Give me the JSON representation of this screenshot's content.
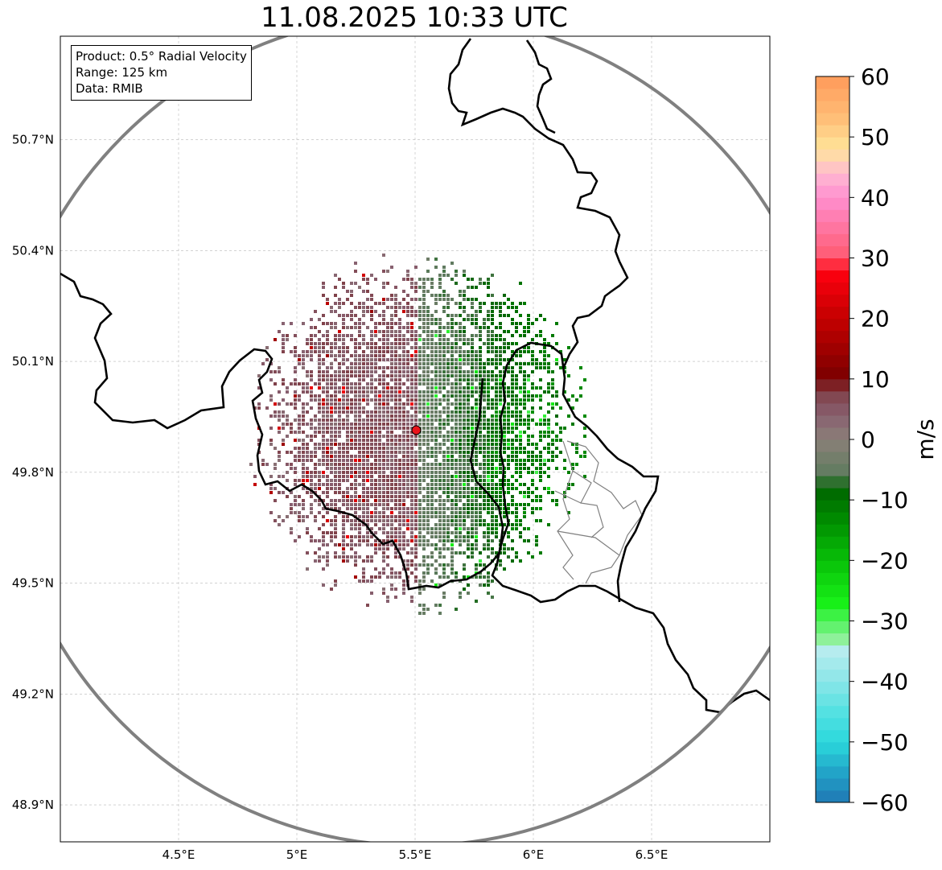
{
  "title": "11.08.2025 10:33 UTC",
  "info_box": {
    "product": "Product: 0.5° Radial Velocity",
    "range": "Range: 125 km",
    "data": "Data: RMIB"
  },
  "map": {
    "lon_range": [
      4.0,
      7.0
    ],
    "lat_range": [
      48.8,
      50.98
    ],
    "radar_site": {
      "lon": 5.505,
      "lat": 49.914
    },
    "range_circle_km": 125,
    "lon_ticks": [
      {
        "value": 4.5,
        "label": "4.5°E"
      },
      {
        "value": 5.0,
        "label": "5°E"
      },
      {
        "value": 5.5,
        "label": "5.5°E"
      },
      {
        "value": 6.0,
        "label": "6°E"
      },
      {
        "value": 6.5,
        "label": "6.5°E"
      }
    ],
    "lat_ticks": [
      {
        "value": 50.7,
        "label": "50.7°N"
      },
      {
        "value": 50.4,
        "label": "50.4°N"
      },
      {
        "value": 50.1,
        "label": "50.1°N"
      },
      {
        "value": 49.8,
        "label": "49.8°N"
      },
      {
        "value": 49.5,
        "label": "49.5°N"
      },
      {
        "value": 49.2,
        "label": "49.2°N"
      },
      {
        "value": 48.9,
        "label": "48.9°N"
      }
    ],
    "colors": {
      "border": "#000000",
      "subborder": "#808080",
      "range_circle": "#808080",
      "grid": "#b8b8b8",
      "site_marker": "#e8141b"
    }
  },
  "colorbar": {
    "label": "m/s",
    "min": -60,
    "max": 60,
    "ticks": [
      {
        "value": 60,
        "label": "60"
      },
      {
        "value": 50,
        "label": "50"
      },
      {
        "value": 40,
        "label": "40"
      },
      {
        "value": 30,
        "label": "30"
      },
      {
        "value": 20,
        "label": "20"
      },
      {
        "value": 10,
        "label": "10"
      },
      {
        "value": 0,
        "label": "0"
      },
      {
        "value": -10,
        "label": "−10"
      },
      {
        "value": -20,
        "label": "−20"
      },
      {
        "value": -30,
        "label": "−30"
      },
      {
        "value": -40,
        "label": "−40"
      },
      {
        "value": -50,
        "label": "−50"
      },
      {
        "value": -60,
        "label": "−60"
      }
    ],
    "stops": [
      {
        "value": -60,
        "color": "#1f77b4"
      },
      {
        "value": -55,
        "color": "#22a4c8"
      },
      {
        "value": -50,
        "color": "#2bd8dc"
      },
      {
        "value": -45,
        "color": "#54e1e2"
      },
      {
        "value": -40,
        "color": "#8ae6e8"
      },
      {
        "value": -35,
        "color": "#b6ecef"
      },
      {
        "value": -33,
        "color": "#8ef19a"
      },
      {
        "value": -30,
        "color": "#4ef35a"
      },
      {
        "value": -27,
        "color": "#18f018"
      },
      {
        "value": -20,
        "color": "#08c008"
      },
      {
        "value": -13,
        "color": "#008a00"
      },
      {
        "value": -8,
        "color": "#006400"
      },
      {
        "value": -6,
        "color": "#5e7b5e"
      },
      {
        "value": 0,
        "color": "#8a8078"
      },
      {
        "value": 4,
        "color": "#886070"
      },
      {
        "value": 8,
        "color": "#804048"
      },
      {
        "value": 10,
        "color": "#7a0000"
      },
      {
        "value": 20,
        "color": "#c40000"
      },
      {
        "value": 28,
        "color": "#ff0010"
      },
      {
        "value": 30,
        "color": "#ff5a70"
      },
      {
        "value": 40,
        "color": "#ff8fcf"
      },
      {
        "value": 44,
        "color": "#ffbad2"
      },
      {
        "value": 48,
        "color": "#ffe49a"
      },
      {
        "value": 53,
        "color": "#ffbf78"
      },
      {
        "value": 60,
        "color": "#ff9a5a"
      }
    ]
  }
}
